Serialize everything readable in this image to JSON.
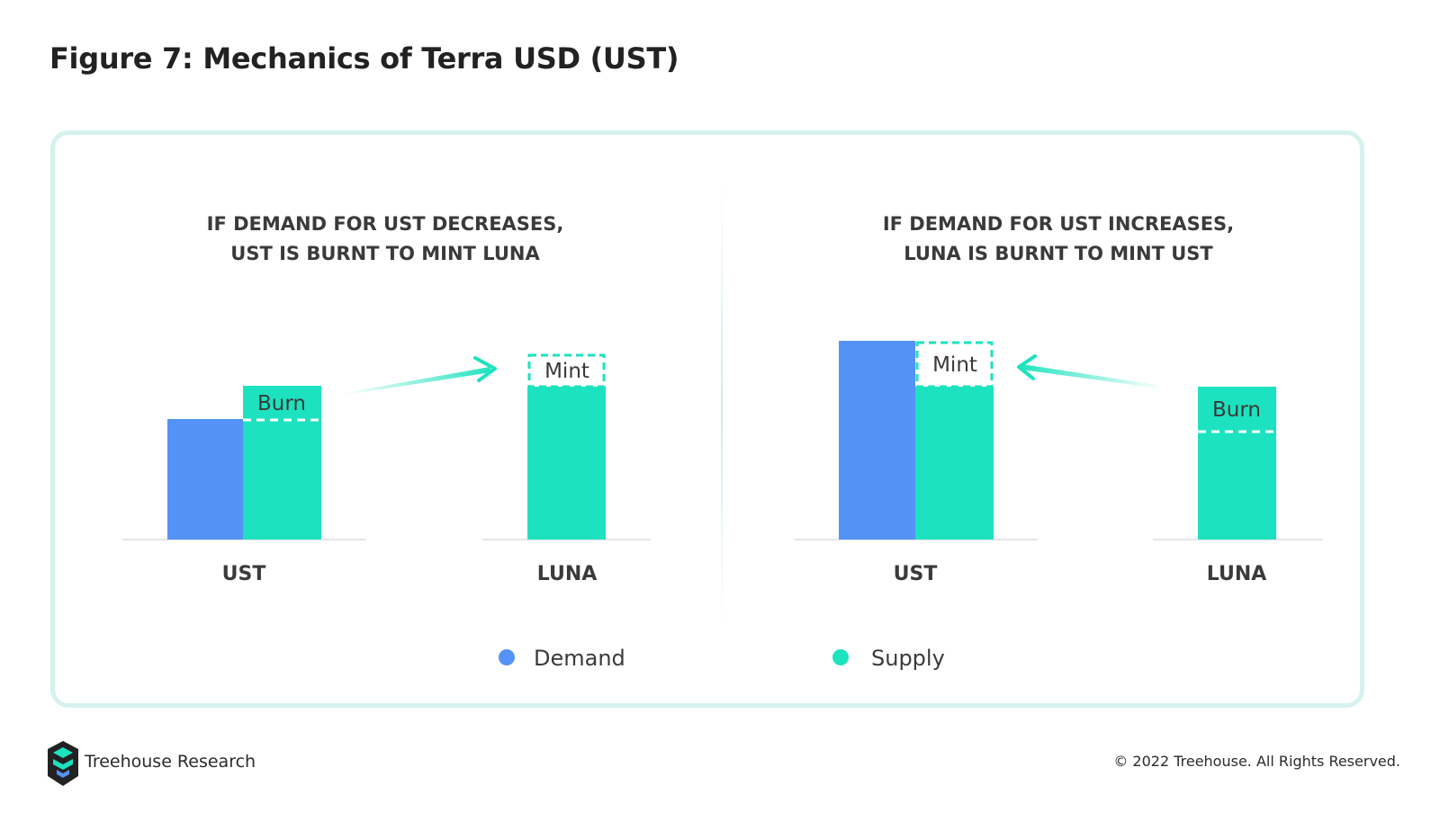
{
  "figure_title": "Figure 7: Mechanics of Terra USD (UST)",
  "panels": [
    {
      "heading_lines": [
        "IF DEMAND FOR UST DECREASES,",
        "UST IS BURNT TO MINT LUNA"
      ],
      "ust_label": "UST",
      "luna_label": "LUNA",
      "ust_bar_label": "Burn",
      "luna_bar_label": "Mint"
    },
    {
      "heading_lines": [
        "IF DEMAND FOR UST INCREASES,",
        "LUNA IS BURNT TO MINT UST"
      ],
      "ust_label": "UST",
      "luna_label": "LUNA",
      "ust_bar_label": "Mint",
      "luna_bar_label": "Burn"
    }
  ],
  "legend": [
    {
      "label": "Demand",
      "color": "#5592f5"
    },
    {
      "label": "Supply",
      "color": "#1de2bf"
    }
  ],
  "colors": {
    "demand": "#5592f5",
    "supply": "#1de2bf",
    "frame_border": "#d6f2ee",
    "text": "#2b2b2b"
  },
  "footer": {
    "brand": "Treehouse Research",
    "copyright": "© 2022 Treehouse. All Rights Reserved."
  }
}
